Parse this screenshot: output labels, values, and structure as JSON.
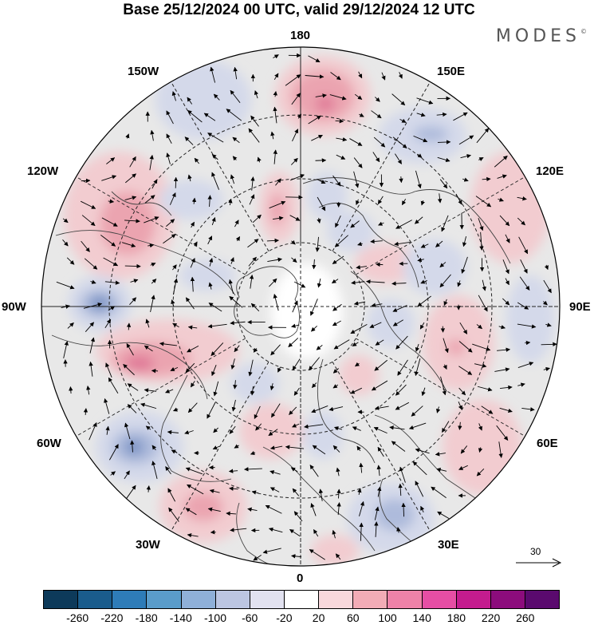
{
  "title": "Base 25/12/2024 00 UTC, valid 29/12/2024 12 UTC",
  "brand": "MODES",
  "brand_mark": "©",
  "longitude_labels": {
    "top": "180",
    "bottom": "0",
    "left": "90W",
    "right": "90E",
    "upper_left": "150W",
    "upper_right": "150E",
    "mid_upper_left": "120W",
    "mid_upper_right": "120E",
    "mid_lower_left": "60W",
    "mid_lower_right": "60E",
    "lower_left": "30W",
    "lower_right": "30E"
  },
  "reference_vector": {
    "value": "30"
  },
  "colorbar": {
    "colors": [
      "#0d3a5a",
      "#1a5c8c",
      "#2e7cb8",
      "#5a9cca",
      "#8fb0d8",
      "#bcc6e2",
      "#e2e2f0",
      "#ffffff",
      "#f8d8dc",
      "#f2acb6",
      "#ee82a8",
      "#e64ea4",
      "#c41c8e",
      "#8c0c7c",
      "#5a0a6e"
    ],
    "labels": [
      "-260",
      "-220",
      "-180",
      "-140",
      "-100",
      "-60",
      "-20",
      "20",
      "60",
      "100",
      "140",
      "180",
      "220",
      "260"
    ]
  },
  "anomaly_colors": {
    "strong_neg": "#7a93c4",
    "neg": "#aebbdc",
    "weak_neg": "#d4d9ea",
    "weak_pos": "#f2ccd0",
    "pos": "#eba4b0",
    "strong_pos": "#e07a98",
    "background": "#e8e8e8"
  }
}
